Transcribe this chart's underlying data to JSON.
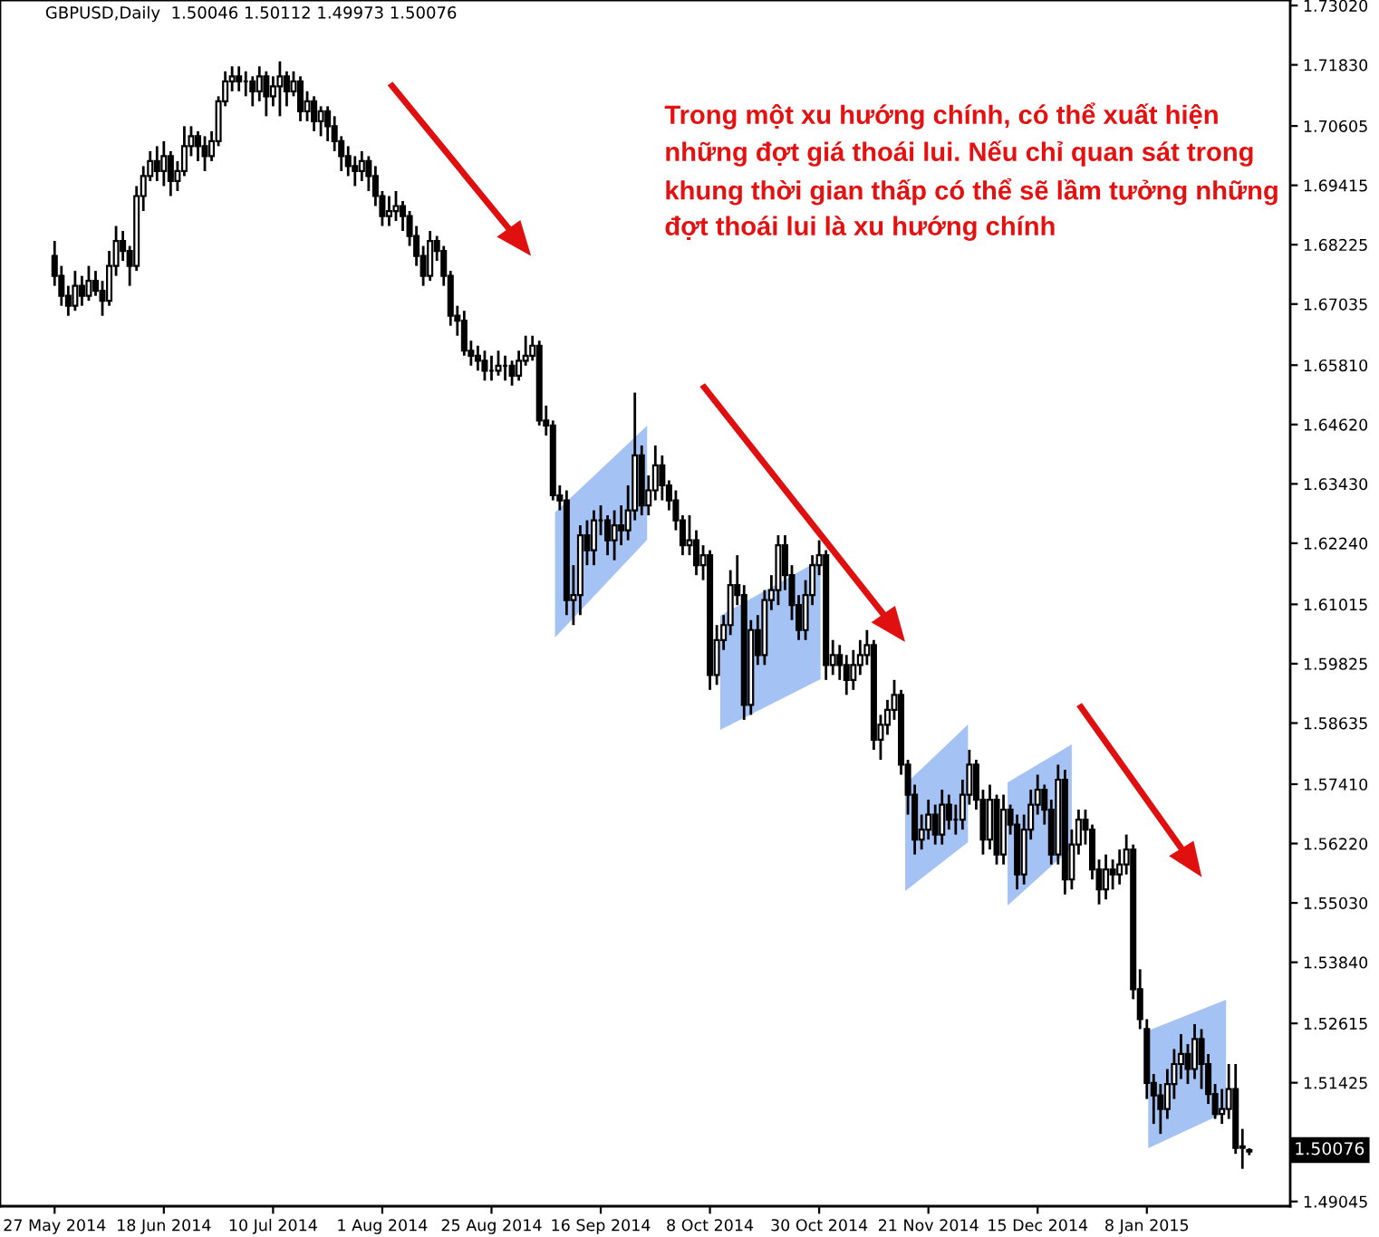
{
  "chart_data": {
    "type": "candlestick",
    "title": "GBPUSD,Daily  1.50046 1.50112 1.49973 1.50076",
    "categories": [
      "27 May 2014",
      null,
      null,
      null,
      null,
      null,
      null,
      null,
      null,
      null,
      null,
      null,
      null,
      null,
      null,
      null,
      "18 Jun 2014",
      null,
      null,
      null,
      null,
      null,
      null,
      null,
      null,
      null,
      null,
      null,
      null,
      null,
      null,
      null,
      "10 Jul 2014",
      null,
      null,
      null,
      null,
      null,
      null,
      null,
      null,
      null,
      null,
      null,
      null,
      null,
      null,
      null,
      "1 Aug 2014",
      null,
      null,
      null,
      null,
      null,
      null,
      null,
      null,
      null,
      null,
      null,
      null,
      null,
      null,
      null,
      "25 Aug 2014",
      null,
      null,
      null,
      null,
      null,
      null,
      null,
      null,
      null,
      null,
      null,
      null,
      null,
      null,
      null,
      "16 Sep 2014",
      null,
      null,
      null,
      null,
      null,
      null,
      null,
      null,
      null,
      null,
      null,
      null,
      null,
      null,
      null,
      "8 Oct 2014",
      null,
      null,
      null,
      null,
      null,
      null,
      null,
      null,
      null,
      null,
      null,
      null,
      null,
      null,
      null,
      "30 Oct 2014",
      null,
      null,
      null,
      null,
      null,
      null,
      null,
      null,
      null,
      null,
      null,
      null,
      null,
      null,
      null,
      "21 Nov 2014",
      null,
      null,
      null,
      null,
      null,
      null,
      null,
      null,
      null,
      null,
      null,
      null,
      null,
      null,
      null,
      "15 Dec 2014",
      null,
      null,
      null,
      null,
      null,
      null,
      null,
      null,
      null,
      null,
      null,
      null,
      null,
      null,
      null,
      "8 Jan 2015",
      null,
      null,
      null,
      null,
      null,
      null,
      null,
      null,
      null,
      null,
      null,
      null,
      null,
      null,
      null
    ],
    "ohlc": [
      [
        1.68,
        1.683,
        1.674,
        1.676
      ],
      [
        1.676,
        1.678,
        1.67,
        1.672
      ],
      [
        1.672,
        1.674,
        1.668,
        1.67
      ],
      [
        1.67,
        1.677,
        1.669,
        1.674
      ],
      [
        1.674,
        1.676,
        1.67,
        1.672
      ],
      [
        1.672,
        1.678,
        1.671,
        1.675
      ],
      [
        1.675,
        1.677,
        1.672,
        1.673
      ],
      [
        1.673,
        1.675,
        1.668,
        1.671
      ],
      [
        1.671,
        1.681,
        1.67,
        1.678
      ],
      [
        1.678,
        1.686,
        1.676,
        1.683
      ],
      [
        1.683,
        1.685,
        1.679,
        1.681
      ],
      [
        1.681,
        1.682,
        1.674,
        1.678
      ],
      [
        1.678,
        1.694,
        1.677,
        1.692
      ],
      [
        1.692,
        1.698,
        1.689,
        1.696
      ],
      [
        1.696,
        1.701,
        1.695,
        1.699
      ],
      [
        1.699,
        1.702,
        1.695,
        1.697
      ],
      [
        1.697,
        1.703,
        1.694,
        1.7
      ],
      [
        1.7,
        1.701,
        1.692,
        1.695
      ],
      [
        1.695,
        1.699,
        1.693,
        1.697
      ],
      [
        1.697,
        1.706,
        1.696,
        1.702
      ],
      [
        1.702,
        1.706,
        1.7,
        1.704
      ],
      [
        1.704,
        1.705,
        1.699,
        1.702
      ],
      [
        1.702,
        1.704,
        1.697,
        1.7
      ],
      [
        1.7,
        1.705,
        1.699,
        1.703
      ],
      [
        1.703,
        1.712,
        1.702,
        1.711
      ],
      [
        1.711,
        1.717,
        1.71,
        1.715
      ],
      [
        1.715,
        1.718,
        1.713,
        1.716
      ],
      [
        1.716,
        1.718,
        1.713,
        1.715
      ],
      [
        1.715,
        1.717,
        1.712,
        1.715
      ],
      [
        1.715,
        1.716,
        1.71,
        1.713
      ],
      [
        1.713,
        1.718,
        1.711,
        1.716
      ],
      [
        1.716,
        1.717,
        1.708,
        1.712
      ],
      [
        1.712,
        1.716,
        1.71,
        1.714
      ],
      [
        1.714,
        1.719,
        1.708,
        1.716
      ],
      [
        1.716,
        1.717,
        1.71,
        1.713
      ],
      [
        1.713,
        1.717,
        1.712,
        1.715
      ],
      [
        1.715,
        1.716,
        1.707,
        1.709
      ],
      [
        1.709,
        1.713,
        1.707,
        1.711
      ],
      [
        1.711,
        1.712,
        1.705,
        1.707
      ],
      [
        1.707,
        1.71,
        1.704,
        1.709
      ],
      [
        1.709,
        1.71,
        1.703,
        1.706
      ],
      [
        1.706,
        1.708,
        1.701,
        1.703
      ],
      [
        1.703,
        1.704,
        1.697,
        1.7
      ],
      [
        1.7,
        1.702,
        1.696,
        1.698
      ],
      [
        1.698,
        1.7,
        1.694,
        1.697
      ],
      [
        1.697,
        1.701,
        1.695,
        1.699
      ],
      [
        1.699,
        1.7,
        1.693,
        1.696
      ],
      [
        1.696,
        1.698,
        1.69,
        1.692
      ],
      [
        1.692,
        1.693,
        1.686,
        1.688
      ],
      [
        1.688,
        1.692,
        1.686,
        1.689
      ],
      [
        1.689,
        1.693,
        1.687,
        1.69
      ],
      [
        1.69,
        1.691,
        1.685,
        1.688
      ],
      [
        1.688,
        1.689,
        1.682,
        1.684
      ],
      [
        1.684,
        1.686,
        1.678,
        1.68
      ],
      [
        1.68,
        1.682,
        1.674,
        1.676
      ],
      [
        1.676,
        1.685,
        1.675,
        1.683
      ],
      [
        1.683,
        1.684,
        1.679,
        1.681
      ],
      [
        1.681,
        1.682,
        1.674,
        1.676
      ],
      [
        1.676,
        1.677,
        1.666,
        1.668
      ],
      [
        1.668,
        1.67,
        1.664,
        1.667
      ],
      [
        1.667,
        1.669,
        1.66,
        1.661
      ],
      [
        1.661,
        1.663,
        1.658,
        1.66
      ],
      [
        1.66,
        1.662,
        1.657,
        1.659
      ],
      [
        1.659,
        1.661,
        1.655,
        1.657
      ],
      [
        1.657,
        1.66,
        1.655,
        1.657
      ],
      [
        1.657,
        1.661,
        1.656,
        1.658
      ],
      [
        1.658,
        1.66,
        1.655,
        1.658
      ],
      [
        1.658,
        1.659,
        1.654,
        1.656
      ],
      [
        1.656,
        1.661,
        1.655,
        1.659
      ],
      [
        1.659,
        1.664,
        1.658,
        1.66
      ],
      [
        1.66,
        1.664,
        1.659,
        1.662
      ],
      [
        1.662,
        1.663,
        1.646,
        1.647
      ],
      [
        1.647,
        1.65,
        1.644,
        1.646
      ],
      [
        1.646,
        1.647,
        1.631,
        1.632
      ],
      [
        1.632,
        1.634,
        1.629,
        1.631
      ],
      [
        1.631,
        1.633,
        1.608,
        1.611
      ],
      [
        1.611,
        1.618,
        1.606,
        1.612
      ],
      [
        1.612,
        1.626,
        1.608,
        1.624
      ],
      [
        1.624,
        1.627,
        1.618,
        1.621
      ],
      [
        1.621,
        1.629,
        1.618,
        1.627
      ],
      [
        1.627,
        1.63,
        1.624,
        1.627
      ],
      [
        1.627,
        1.628,
        1.62,
        1.623
      ],
      [
        1.623,
        1.629,
        1.619,
        1.626
      ],
      [
        1.626,
        1.63,
        1.622,
        1.625
      ],
      [
        1.625,
        1.634,
        1.623,
        1.629
      ],
      [
        1.629,
        1.6526,
        1.627,
        1.64
      ],
      [
        1.64,
        1.642,
        1.628,
        1.63
      ],
      [
        1.63,
        1.636,
        1.628,
        1.633
      ],
      [
        1.633,
        1.642,
        1.631,
        1.638
      ],
      [
        1.638,
        1.64,
        1.631,
        1.634
      ],
      [
        1.634,
        1.635,
        1.629,
        1.631
      ],
      [
        1.631,
        1.633,
        1.625,
        1.627
      ],
      [
        1.627,
        1.628,
        1.62,
        1.622
      ],
      [
        1.622,
        1.628,
        1.62,
        1.623
      ],
      [
        1.623,
        1.625,
        1.616,
        1.618
      ],
      [
        1.618,
        1.622,
        1.615,
        1.62
      ],
      [
        1.62,
        1.621,
        1.593,
        1.596
      ],
      [
        1.596,
        1.606,
        1.594,
        1.603
      ],
      [
        1.603,
        1.608,
        1.601,
        1.606
      ],
      [
        1.606,
        1.617,
        1.604,
        1.614
      ],
      [
        1.614,
        1.62,
        1.61,
        1.612
      ],
      [
        1.612,
        1.614,
        1.587,
        1.59
      ],
      [
        1.59,
        1.607,
        1.588,
        1.605
      ],
      [
        1.605,
        1.608,
        1.598,
        1.6
      ],
      [
        1.6,
        1.613,
        1.598,
        1.611
      ],
      [
        1.611,
        1.616,
        1.609,
        1.613
      ],
      [
        1.613,
        1.624,
        1.61,
        1.622
      ],
      [
        1.622,
        1.624,
        1.613,
        1.616
      ],
      [
        1.616,
        1.618,
        1.607,
        1.61
      ],
      [
        1.61,
        1.612,
        1.603,
        1.605
      ],
      [
        1.605,
        1.615,
        1.603,
        1.612
      ],
      [
        1.612,
        1.62,
        1.61,
        1.618
      ],
      [
        1.618,
        1.623,
        1.616,
        1.62
      ],
      [
        1.62,
        1.621,
        1.595,
        1.598
      ],
      [
        1.598,
        1.603,
        1.596,
        1.6
      ],
      [
        1.6,
        1.602,
        1.595,
        1.598
      ],
      [
        1.598,
        1.6,
        1.592,
        1.595
      ],
      [
        1.595,
        1.601,
        1.593,
        1.598
      ],
      [
        1.598,
        1.603,
        1.596,
        1.6
      ],
      [
        1.6,
        1.605,
        1.598,
        1.602
      ],
      [
        1.602,
        1.603,
        1.581,
        1.583
      ],
      [
        1.583,
        1.588,
        1.579,
        1.586
      ],
      [
        1.586,
        1.591,
        1.584,
        1.589
      ],
      [
        1.589,
        1.595,
        1.587,
        1.592
      ],
      [
        1.592,
        1.593,
        1.576,
        1.578
      ],
      [
        1.578,
        1.579,
        1.568,
        1.572
      ],
      [
        1.572,
        1.574,
        1.56,
        1.563
      ],
      [
        1.563,
        1.568,
        1.561,
        1.565
      ],
      [
        1.565,
        1.571,
        1.563,
        1.568
      ],
      [
        1.568,
        1.57,
        1.562,
        1.564
      ],
      [
        1.564,
        1.573,
        1.562,
        1.57
      ],
      [
        1.57,
        1.572,
        1.565,
        1.567
      ],
      [
        1.567,
        1.57,
        1.564,
        1.567
      ],
      [
        1.567,
        1.575,
        1.565,
        1.572
      ],
      [
        1.572,
        1.581,
        1.57,
        1.578
      ],
      [
        1.578,
        1.579,
        1.569,
        1.571
      ],
      [
        1.571,
        1.573,
        1.56,
        1.563
      ],
      [
        1.563,
        1.574,
        1.561,
        1.571
      ],
      [
        1.571,
        1.572,
        1.558,
        1.56
      ],
      [
        1.56,
        1.572,
        1.558,
        1.569
      ],
      [
        1.569,
        1.57,
        1.564,
        1.566
      ],
      [
        1.566,
        1.568,
        1.553,
        1.556
      ],
      [
        1.556,
        1.568,
        1.554,
        1.565
      ],
      [
        1.565,
        1.573,
        1.563,
        1.57
      ],
      [
        1.57,
        1.576,
        1.568,
        1.573
      ],
      [
        1.573,
        1.574,
        1.566,
        1.569
      ],
      [
        1.569,
        1.571,
        1.558,
        1.56
      ],
      [
        1.56,
        1.578,
        1.558,
        1.575
      ],
      [
        1.575,
        1.577,
        1.552,
        1.555
      ],
      [
        1.555,
        1.565,
        1.553,
        1.562
      ],
      [
        1.562,
        1.569,
        1.56,
        1.567
      ],
      [
        1.567,
        1.569,
        1.562,
        1.565
      ],
      [
        1.565,
        1.566,
        1.555,
        1.557
      ],
      [
        1.557,
        1.559,
        1.55,
        1.553
      ],
      [
        1.553,
        1.56,
        1.551,
        1.557
      ],
      [
        1.557,
        1.559,
        1.553,
        1.556
      ],
      [
        1.556,
        1.561,
        1.554,
        1.558
      ],
      [
        1.558,
        1.564,
        1.556,
        1.561
      ],
      [
        1.561,
        1.562,
        1.531,
        1.533
      ],
      [
        1.533,
        1.537,
        1.525,
        1.527
      ],
      [
        1.525,
        1.527,
        1.511,
        1.5142
      ],
      [
        1.5142,
        1.516,
        1.506,
        1.5117
      ],
      [
        1.5117,
        1.514,
        1.504,
        1.509
      ],
      [
        1.509,
        1.517,
        1.507,
        1.514
      ],
      [
        1.514,
        1.521,
        1.511,
        1.518
      ],
      [
        1.518,
        1.524,
        1.515,
        1.52
      ],
      [
        1.52,
        1.522,
        1.514,
        1.517
      ],
      [
        1.517,
        1.526,
        1.515,
        1.523
      ],
      [
        1.523,
        1.525,
        1.513,
        1.518
      ],
      [
        1.518,
        1.52,
        1.51,
        1.512
      ],
      [
        1.512,
        1.514,
        1.507,
        1.508
      ],
      [
        1.508,
        1.513,
        1.506,
        1.509
      ],
      [
        1.509,
        1.518,
        1.507,
        1.513
      ],
      [
        1.513,
        1.518,
        1.5,
        1.5012
      ],
      [
        1.5012,
        1.505,
        1.497,
        1.5015
      ],
      [
        1.50046,
        1.50112,
        1.49973,
        1.50076
      ]
    ],
    "annotations": [
      "Trong một xu hướng chính, có thể xuất hiện\nnhững đợt giá thoái lui. Nếu chỉ quan sát trong\nkhung thời gian thấp có thể sẽ lầm tưởng những\nđợt thoái lui là xu hướng chính",
      "1.50076"
    ],
    "ylim": [
      1.4895,
      1.7313
    ],
    "yticks": [
      {
        "value": 1.7302,
        "label": "1.73020"
      },
      {
        "value": 1.7183,
        "label": "1.71830"
      },
      {
        "value": 1.70605,
        "label": "1.70605"
      },
      {
        "value": 1.69415,
        "label": "1.69415"
      },
      {
        "value": 1.68225,
        "label": "1.68225"
      },
      {
        "value": 1.67035,
        "label": "1.67035"
      },
      {
        "value": 1.6581,
        "label": "1.65810"
      },
      {
        "value": 1.6462,
        "label": "1.64620"
      },
      {
        "value": 1.6343,
        "label": "1.63430"
      },
      {
        "value": 1.6224,
        "label": "1.62240"
      },
      {
        "value": 1.61015,
        "label": "1.61015"
      },
      {
        "value": 1.59825,
        "label": "1.59825"
      },
      {
        "value": 1.58635,
        "label": "1.58635"
      },
      {
        "value": 1.5741,
        "label": "1.57410"
      },
      {
        "value": 1.5622,
        "label": "1.56220"
      },
      {
        "value": 1.5503,
        "label": "1.55030"
      },
      {
        "value": 1.5384,
        "label": "1.53840"
      },
      {
        "value": 1.52615,
        "label": "1.52615"
      },
      {
        "value": 1.51425,
        "label": "1.51425"
      },
      {
        "value": 1.49045,
        "label": "1.49045"
      }
    ]
  }
}
